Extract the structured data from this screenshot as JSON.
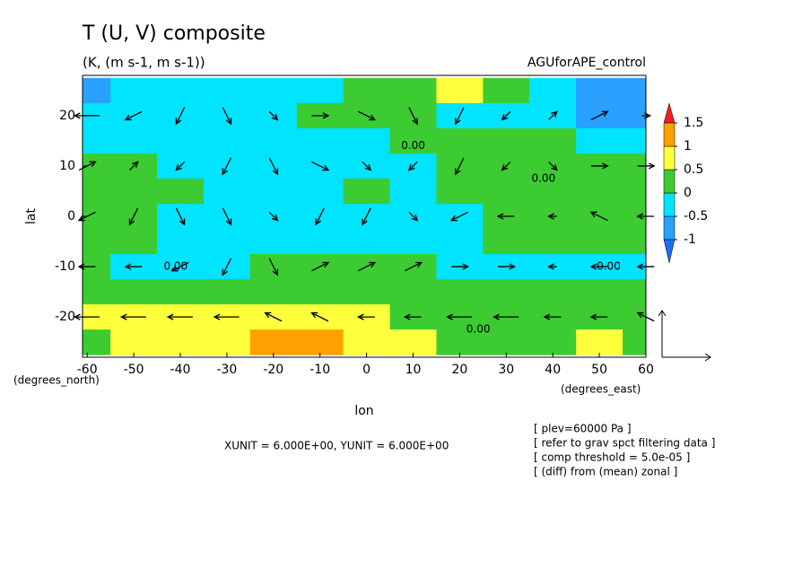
{
  "chart_data": {
    "type": "contour",
    "title": "T (U, V) composite",
    "subtitle": "(K, (m s-1, m s-1))",
    "experiment": "AGUforAPE_control",
    "x_label": "lon",
    "y_label": "lat",
    "x_unit": "(degrees_east)",
    "y_unit": "(degrees_north)",
    "vector_units": "XUNIT = 6.000E+00, YUNIT = 6.000E+00",
    "notes": [
      "[ plev=60000 Pa ]",
      "[ refer to grav spct filtering data ]",
      "[ comp threshold = 5.0e-05 ]",
      "[ (diff) from (mean) zonal ]"
    ],
    "xlim": [
      -61,
      60
    ],
    "ylim": [
      -28,
      28
    ],
    "xticks": [
      -60,
      -50,
      -40,
      -30,
      -20,
      -10,
      0,
      10,
      20,
      30,
      40,
      50,
      60
    ],
    "yticks": [
      -20,
      -10,
      0,
      10,
      20
    ],
    "levels": [
      -1,
      -0.5,
      0,
      0.5,
      1,
      1.5
    ],
    "colors": [
      "#1e6ef0",
      "#2aa0ff",
      "#00e4ff",
      "#3ccc32",
      "#ffff3c",
      "#ffa000",
      "#f01e1e"
    ],
    "field": {
      "x": [
        -60,
        -50,
        -40,
        -30,
        -20,
        -10,
        0,
        10,
        20,
        30,
        40,
        50,
        60
      ],
      "y": [
        25,
        20,
        15,
        10,
        5,
        0,
        -5,
        -10,
        -15,
        -20,
        -25
      ],
      "z": [
        [
          -0.6,
          -0.3,
          -0.2,
          -0.2,
          -0.2,
          -0.2,
          0.2,
          0.2,
          0.6,
          0.3,
          -0.2,
          -0.6,
          -0.7
        ],
        [
          -0.3,
          -0.2,
          -0.2,
          -0.2,
          -0.2,
          0.1,
          0.2,
          0.2,
          -0.1,
          -0.2,
          -0.3,
          -0.6,
          -0.7
        ],
        [
          -0.2,
          -0.2,
          -0.2,
          -0.2,
          -0.2,
          -0.2,
          -0.1,
          0.1,
          0.2,
          0.2,
          0.1,
          -0.2,
          -0.3
        ],
        [
          0.2,
          0.2,
          -0.1,
          -0.2,
          -0.2,
          -0.2,
          -0.2,
          -0.1,
          0.2,
          0.2,
          0.2,
          0.2,
          0.1
        ],
        [
          0.2,
          0.2,
          0.1,
          -0.2,
          -0.2,
          -0.1,
          0.1,
          -0.2,
          0.1,
          0.2,
          0.2,
          0.2,
          0.2
        ],
        [
          0.2,
          0.2,
          -0.1,
          -0.2,
          -0.2,
          -0.2,
          -0.2,
          -0.2,
          -0.1,
          0.2,
          0.2,
          0.2,
          0.2
        ],
        [
          0.2,
          0.1,
          -0.2,
          -0.2,
          -0.2,
          -0.2,
          -0.2,
          -0.2,
          -0.1,
          0.1,
          0.2,
          0.2,
          0.2
        ],
        [
          0.2,
          -0.1,
          -0.2,
          -0.1,
          0.1,
          0.2,
          0.2,
          0.1,
          -0.1,
          -0.2,
          -0.2,
          -0.1,
          -0.2
        ],
        [
          0.2,
          0.2,
          0.2,
          0.2,
          0.3,
          0.3,
          0.3,
          0.3,
          0.2,
          0.2,
          0.2,
          0.2,
          0.2
        ],
        [
          0.6,
          0.6,
          0.6,
          0.6,
          0.7,
          0.7,
          0.6,
          0.4,
          0.3,
          0.2,
          0.1,
          0.2,
          0.1
        ],
        [
          0.3,
          0.6,
          0.7,
          0.8,
          1.1,
          1.1,
          0.8,
          0.6,
          0.4,
          0.3,
          0.4,
          0.6,
          0.4
        ]
      ]
    },
    "vectors": {
      "x": [
        -60,
        -50,
        -40,
        -30,
        -20,
        -10,
        0,
        10,
        20,
        30,
        40,
        50,
        60
      ],
      "y": [
        20,
        10,
        0,
        -10,
        -20
      ],
      "u": [
        [
          -3,
          -2,
          -1,
          1,
          1,
          2,
          2,
          1,
          -1,
          -1,
          1,
          2,
          1
        ],
        [
          2,
          1,
          -1,
          -1,
          1,
          2,
          1,
          -1,
          -1,
          -1,
          1,
          2,
          2
        ],
        [
          -2,
          -1,
          1,
          1,
          1,
          -1,
          -1,
          1,
          -2,
          -2,
          -1,
          -2,
          -2
        ],
        [
          -2,
          -2,
          -2,
          -1,
          1,
          2,
          2,
          2,
          2,
          2,
          -1,
          -2,
          -2
        ],
        [
          -3,
          -3,
          -3,
          -3,
          -2,
          -2,
          -2,
          -2,
          -3,
          -3,
          -2,
          -2,
          -2
        ]
      ],
      "v": [
        [
          0,
          -1,
          -2,
          -2,
          -1,
          0,
          -1,
          -2,
          -2,
          -1,
          1,
          1,
          0
        ],
        [
          1,
          1,
          -1,
          -2,
          -2,
          -1,
          -1,
          -1,
          -2,
          -1,
          -1,
          0,
          0
        ],
        [
          -1,
          -2,
          -2,
          -2,
          -1,
          -2,
          -2,
          -1,
          -1,
          0,
          0,
          1,
          0
        ],
        [
          0,
          0,
          -1,
          -2,
          -2,
          1,
          1,
          1,
          0,
          0,
          0,
          0,
          0
        ],
        [
          0,
          0,
          0,
          0,
          1,
          1,
          0,
          0,
          0,
          0,
          0,
          0,
          1
        ]
      ]
    },
    "annotations": [
      {
        "text": "0.00",
        "x": 10,
        "y": 14
      },
      {
        "text": "0.00",
        "x": 38,
        "y": 7.5
      },
      {
        "text": "0.00",
        "x": -41,
        "y": -10
      },
      {
        "text": "0.00",
        "x": 52,
        "y": -10
      },
      {
        "text": "0.00",
        "x": 24,
        "y": -22.5
      }
    ]
  }
}
